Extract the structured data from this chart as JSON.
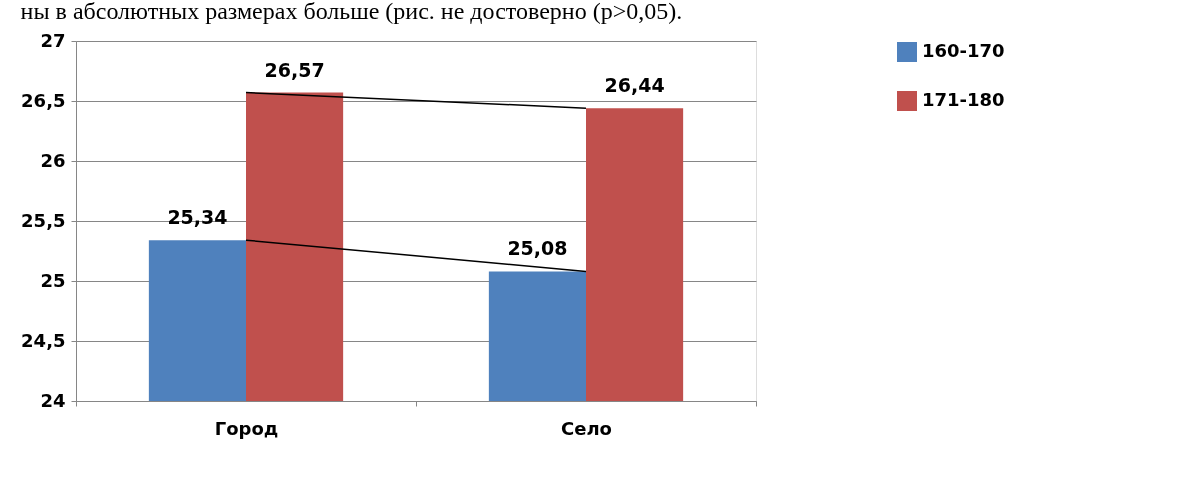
{
  "chart_data": {
    "type": "bar",
    "categories": [
      "Город",
      "Село"
    ],
    "series": [
      {
        "name": "160-170",
        "color": "#4f81bd",
        "values": [
          25.34,
          25.08
        ],
        "value_labels": [
          "25,34",
          "25,08"
        ]
      },
      {
        "name": "171-180",
        "color": "#c0504d",
        "values": [
          26.57,
          26.44
        ],
        "value_labels": [
          "26,57",
          "26,44"
        ]
      },
      {
        "type": "line",
        "color": "#000000",
        "values": [
          25.34,
          25.08
        ]
      },
      {
        "type": "line",
        "color": "#000000",
        "values": [
          26.57,
          26.44
        ]
      }
    ],
    "ylim": [
      24,
      27
    ],
    "yticks": [
      24,
      {
        "value": 24.5,
        "label": "24,5"
      },
      25,
      {
        "value": 25.5,
        "label": "25,5"
      },
      26,
      {
        "value": 26.5,
        "label": "26,5"
      },
      27
    ],
    "grid": "y",
    "legend": "top right",
    "marker": "none",
    "annotations": [
      "ны в абсолютных размерах больше (рис.       не достоверно (р>0,05)."
    ]
  }
}
